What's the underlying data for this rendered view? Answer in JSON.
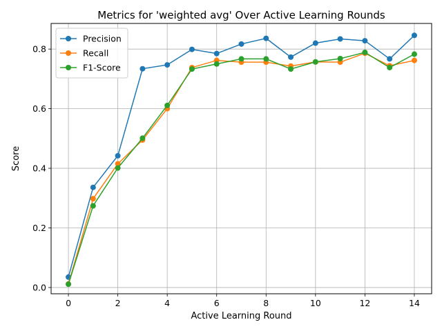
{
  "chart_data": {
    "type": "line",
    "title": "Metrics for 'weighted avg' Over Active Learning Rounds",
    "xlabel": "Active Learning Round",
    "ylabel": "Score",
    "xlim": [
      -0.7,
      14.7
    ],
    "ylim": [
      -0.021,
      0.886
    ],
    "xticks": [
      0,
      2,
      4,
      6,
      8,
      10,
      12,
      14
    ],
    "yticks": [
      0.0,
      0.2,
      0.4,
      0.6,
      0.8
    ],
    "xtick_labels": [
      "0",
      "2",
      "4",
      "6",
      "8",
      "10",
      "12",
      "14"
    ],
    "ytick_labels": [
      "0.0",
      "0.2",
      "0.4",
      "0.6",
      "0.8"
    ],
    "grid": true,
    "legend_position": "top-left",
    "x": [
      0,
      1,
      2,
      3,
      4,
      5,
      6,
      7,
      8,
      9,
      10,
      11,
      12,
      13,
      14
    ],
    "series": [
      {
        "name": "Precision",
        "color": "#1f77b4",
        "values": [
          0.035,
          0.336,
          0.442,
          0.734,
          0.747,
          0.799,
          0.785,
          0.817,
          0.836,
          0.773,
          0.82,
          0.834,
          0.828,
          0.767,
          0.846
        ]
      },
      {
        "name": "Recall",
        "color": "#ff7f0e",
        "values": [
          0.012,
          0.298,
          0.415,
          0.495,
          0.6,
          0.738,
          0.762,
          0.756,
          0.756,
          0.743,
          0.757,
          0.756,
          0.786,
          0.744,
          0.762
        ]
      },
      {
        "name": "F1-Score",
        "color": "#2ca02c",
        "values": [
          0.011,
          0.274,
          0.401,
          0.501,
          0.611,
          0.733,
          0.75,
          0.767,
          0.767,
          0.733,
          0.757,
          0.768,
          0.789,
          0.738,
          0.783
        ]
      }
    ]
  }
}
